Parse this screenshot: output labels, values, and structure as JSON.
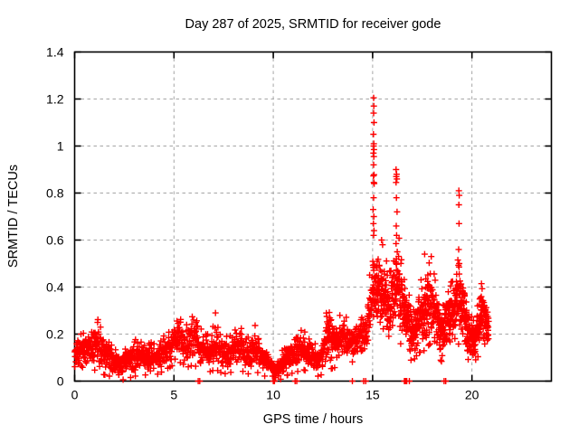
{
  "chart_data": {
    "type": "scatter",
    "title": "Day 287 of 2025, SRMTID for receiver gode",
    "xlabel": "GPS time / hours",
    "ylabel": "SRMTID / TECUs",
    "xlim": [
      0,
      24
    ],
    "ylim": [
      0,
      1.4
    ],
    "xticks": [
      0,
      5,
      10,
      15,
      20
    ],
    "xtick_labels": [
      "0",
      "5",
      "10",
      "15",
      "20"
    ],
    "yticks": [
      0,
      0.2,
      0.4,
      0.6,
      0.8,
      1,
      1.2,
      1.4
    ],
    "ytick_labels": [
      "0",
      "0.2",
      "0.4",
      "0.6",
      "0.8",
      "1",
      "1.2",
      "1.4"
    ],
    "grid": {
      "show": true,
      "color": "#a6a6a6",
      "style": "dashed"
    },
    "legend": {
      "show": false
    },
    "background": "#ffffff",
    "frame_color": "#000000",
    "marker": {
      "symbol": "plus",
      "color": "#ff0000",
      "size": 7
    },
    "series": [
      {
        "name": "SRMTID",
        "time_range": [
          0,
          20.85
        ],
        "sampling_hours": 0.01,
        "band_profile": [
          [
            0.0,
            0.05,
            0.17
          ],
          [
            0.3,
            0.05,
            0.22
          ],
          [
            0.6,
            0.06,
            0.24
          ],
          [
            0.8,
            0.06,
            0.2
          ],
          [
            1.1,
            0.07,
            0.26
          ],
          [
            1.4,
            0.05,
            0.2
          ],
          [
            1.8,
            0.04,
            0.15
          ],
          [
            2.2,
            0.02,
            0.12
          ],
          [
            2.6,
            0.03,
            0.13
          ],
          [
            3.0,
            0.04,
            0.16
          ],
          [
            3.4,
            0.05,
            0.18
          ],
          [
            3.8,
            0.04,
            0.15
          ],
          [
            4.2,
            0.05,
            0.16
          ],
          [
            4.6,
            0.07,
            0.2
          ],
          [
            5.0,
            0.09,
            0.24
          ],
          [
            5.3,
            0.1,
            0.3
          ],
          [
            5.7,
            0.08,
            0.22
          ],
          [
            6.0,
            0.09,
            0.28
          ],
          [
            6.4,
            0.06,
            0.2
          ],
          [
            6.8,
            0.06,
            0.18
          ],
          [
            7.1,
            0.07,
            0.28
          ],
          [
            7.5,
            0.05,
            0.17
          ],
          [
            8.0,
            0.06,
            0.2
          ],
          [
            8.3,
            0.07,
            0.25
          ],
          [
            8.7,
            0.05,
            0.18
          ],
          [
            9.1,
            0.06,
            0.22
          ],
          [
            9.4,
            0.05,
            0.16
          ],
          [
            9.8,
            0.03,
            0.12
          ],
          [
            10.1,
            0.01,
            0.07
          ],
          [
            10.4,
            0.03,
            0.12
          ],
          [
            10.8,
            0.05,
            0.15
          ],
          [
            11.2,
            0.06,
            0.2
          ],
          [
            11.5,
            0.07,
            0.21
          ],
          [
            11.9,
            0.05,
            0.16
          ],
          [
            12.3,
            0.04,
            0.15
          ],
          [
            12.8,
            0.07,
            0.33
          ],
          [
            13.2,
            0.08,
            0.24
          ],
          [
            13.5,
            0.09,
            0.28
          ],
          [
            13.9,
            0.1,
            0.24
          ],
          [
            14.3,
            0.11,
            0.27
          ],
          [
            14.7,
            0.12,
            0.3
          ],
          [
            15.0,
            0.22,
            0.6
          ],
          [
            15.3,
            0.25,
            0.55
          ],
          [
            15.6,
            0.24,
            0.5
          ],
          [
            15.9,
            0.2,
            0.45
          ],
          [
            16.2,
            0.2,
            0.55
          ],
          [
            16.4,
            0.18,
            0.6
          ],
          [
            16.7,
            0.14,
            0.38
          ],
          [
            17.0,
            0.1,
            0.3
          ],
          [
            17.3,
            0.14,
            0.36
          ],
          [
            17.6,
            0.15,
            0.45
          ],
          [
            17.9,
            0.18,
            0.5
          ],
          [
            18.2,
            0.14,
            0.42
          ],
          [
            18.5,
            0.1,
            0.3
          ],
          [
            18.8,
            0.14,
            0.36
          ],
          [
            19.1,
            0.15,
            0.42
          ],
          [
            19.35,
            0.18,
            0.55
          ],
          [
            19.6,
            0.14,
            0.42
          ],
          [
            19.9,
            0.1,
            0.28
          ],
          [
            20.1,
            0.1,
            0.24
          ],
          [
            20.35,
            0.13,
            0.33
          ],
          [
            20.55,
            0.15,
            0.42
          ],
          [
            20.75,
            0.14,
            0.34
          ],
          [
            20.85,
            0.15,
            0.3
          ]
        ],
        "outliers": [
          [
            15.05,
            1.205
          ],
          [
            15.06,
            1.17
          ],
          [
            15.05,
            1.14
          ],
          [
            15.07,
            1.1
          ],
          [
            15.04,
            1.05
          ],
          [
            15.06,
            1.01
          ],
          [
            15.05,
            1.0
          ],
          [
            15.07,
            0.985
          ],
          [
            15.04,
            0.97
          ],
          [
            15.06,
            0.955
          ],
          [
            15.05,
            0.92
          ],
          [
            15.07,
            0.878
          ],
          [
            15.04,
            0.873
          ],
          [
            15.06,
            0.845
          ],
          [
            15.08,
            0.84
          ],
          [
            15.05,
            0.78
          ],
          [
            15.03,
            0.73
          ],
          [
            15.06,
            0.7
          ],
          [
            15.04,
            0.67
          ],
          [
            15.07,
            0.64
          ],
          [
            15.05,
            0.62
          ],
          [
            15.45,
            0.6
          ],
          [
            15.5,
            0.58
          ],
          [
            16.18,
            0.9
          ],
          [
            16.21,
            0.88
          ],
          [
            16.19,
            0.87
          ],
          [
            16.22,
            0.86
          ],
          [
            16.18,
            0.845
          ],
          [
            16.2,
            0.78
          ],
          [
            16.23,
            0.72
          ],
          [
            16.19,
            0.66
          ],
          [
            16.21,
            0.62
          ],
          [
            16.18,
            0.585
          ],
          [
            16.24,
            0.55
          ],
          [
            16.2,
            0.52
          ],
          [
            17.62,
            0.54
          ],
          [
            17.95,
            0.53
          ],
          [
            19.34,
            0.81
          ],
          [
            19.36,
            0.79
          ],
          [
            19.34,
            0.75
          ],
          [
            19.35,
            0.67
          ],
          [
            19.33,
            0.56
          ],
          [
            19.36,
            0.5
          ]
        ],
        "zero_marks": [
          6.22,
          6.3,
          10.0,
          10.06,
          11.1,
          11.18,
          13.98,
          14.55,
          14.65,
          16.6,
          16.63,
          16.66,
          16.69,
          16.72,
          16.85,
          18.6,
          18.68
        ]
      }
    ]
  }
}
